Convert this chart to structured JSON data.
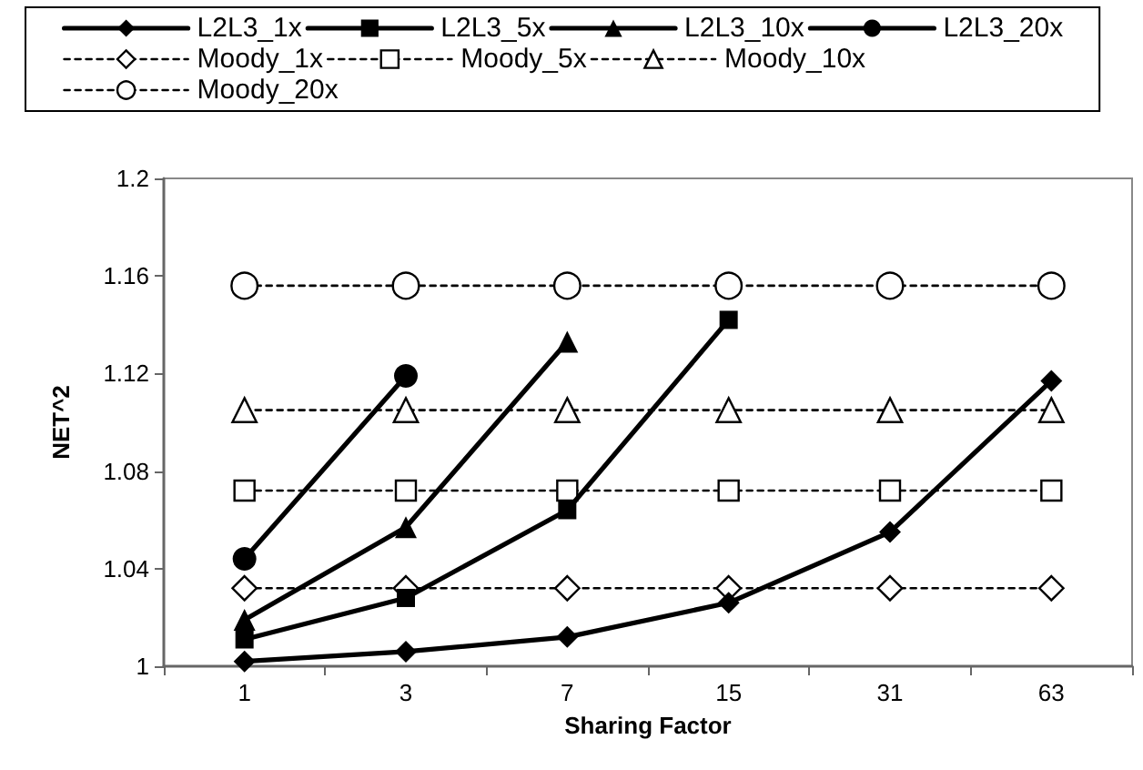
{
  "chart_data": {
    "type": "line",
    "xlabel": "Sharing Factor",
    "ylabel": "NET^2",
    "categories": [
      "1",
      "3",
      "7",
      "15",
      "31",
      "63"
    ],
    "ylim": [
      1,
      1.2
    ],
    "yticks": [
      1,
      1.04,
      1.08,
      1.12,
      1.16,
      1.2
    ],
    "grid": false,
    "legend": "top",
    "series": [
      {
        "name": "L2L3_1x",
        "color": "#000000",
        "marker": "diamond",
        "line_style": "solid",
        "values": [
          1.002,
          1.006,
          1.012,
          1.026,
          1.055,
          1.117
        ]
      },
      {
        "name": "L2L3_5x",
        "color": "#000000",
        "marker": "square",
        "line_style": "solid",
        "values": [
          1.011,
          1.028,
          1.064,
          1.142,
          null,
          null
        ]
      },
      {
        "name": "L2L3_10x",
        "color": "#000000",
        "marker": "triangle",
        "line_style": "solid",
        "values": [
          1.019,
          1.057,
          1.133,
          null,
          null,
          null
        ]
      },
      {
        "name": "L2L3_20x",
        "color": "#000000",
        "marker": "circle",
        "line_style": "solid",
        "values": [
          1.044,
          1.119,
          null,
          null,
          null,
          null
        ]
      },
      {
        "name": "Moody_1x",
        "color": "#000000",
        "marker": "diamond",
        "line_style": "dashed",
        "values": [
          1.032,
          1.032,
          1.032,
          1.032,
          1.032,
          1.032
        ]
      },
      {
        "name": "Moody_5x",
        "color": "#000000",
        "marker": "square",
        "line_style": "dashed",
        "values": [
          1.072,
          1.072,
          1.072,
          1.072,
          1.072,
          1.072
        ]
      },
      {
        "name": "Moody_10x",
        "color": "#000000",
        "marker": "triangle",
        "line_style": "dashed",
        "values": [
          1.105,
          1.105,
          1.105,
          1.105,
          1.105,
          1.105
        ]
      },
      {
        "name": "Moody_20x",
        "color": "#000000",
        "marker": "circle",
        "line_style": "dashed",
        "values": [
          1.156,
          1.156,
          1.156,
          1.156,
          1.156,
          1.156
        ]
      }
    ]
  }
}
